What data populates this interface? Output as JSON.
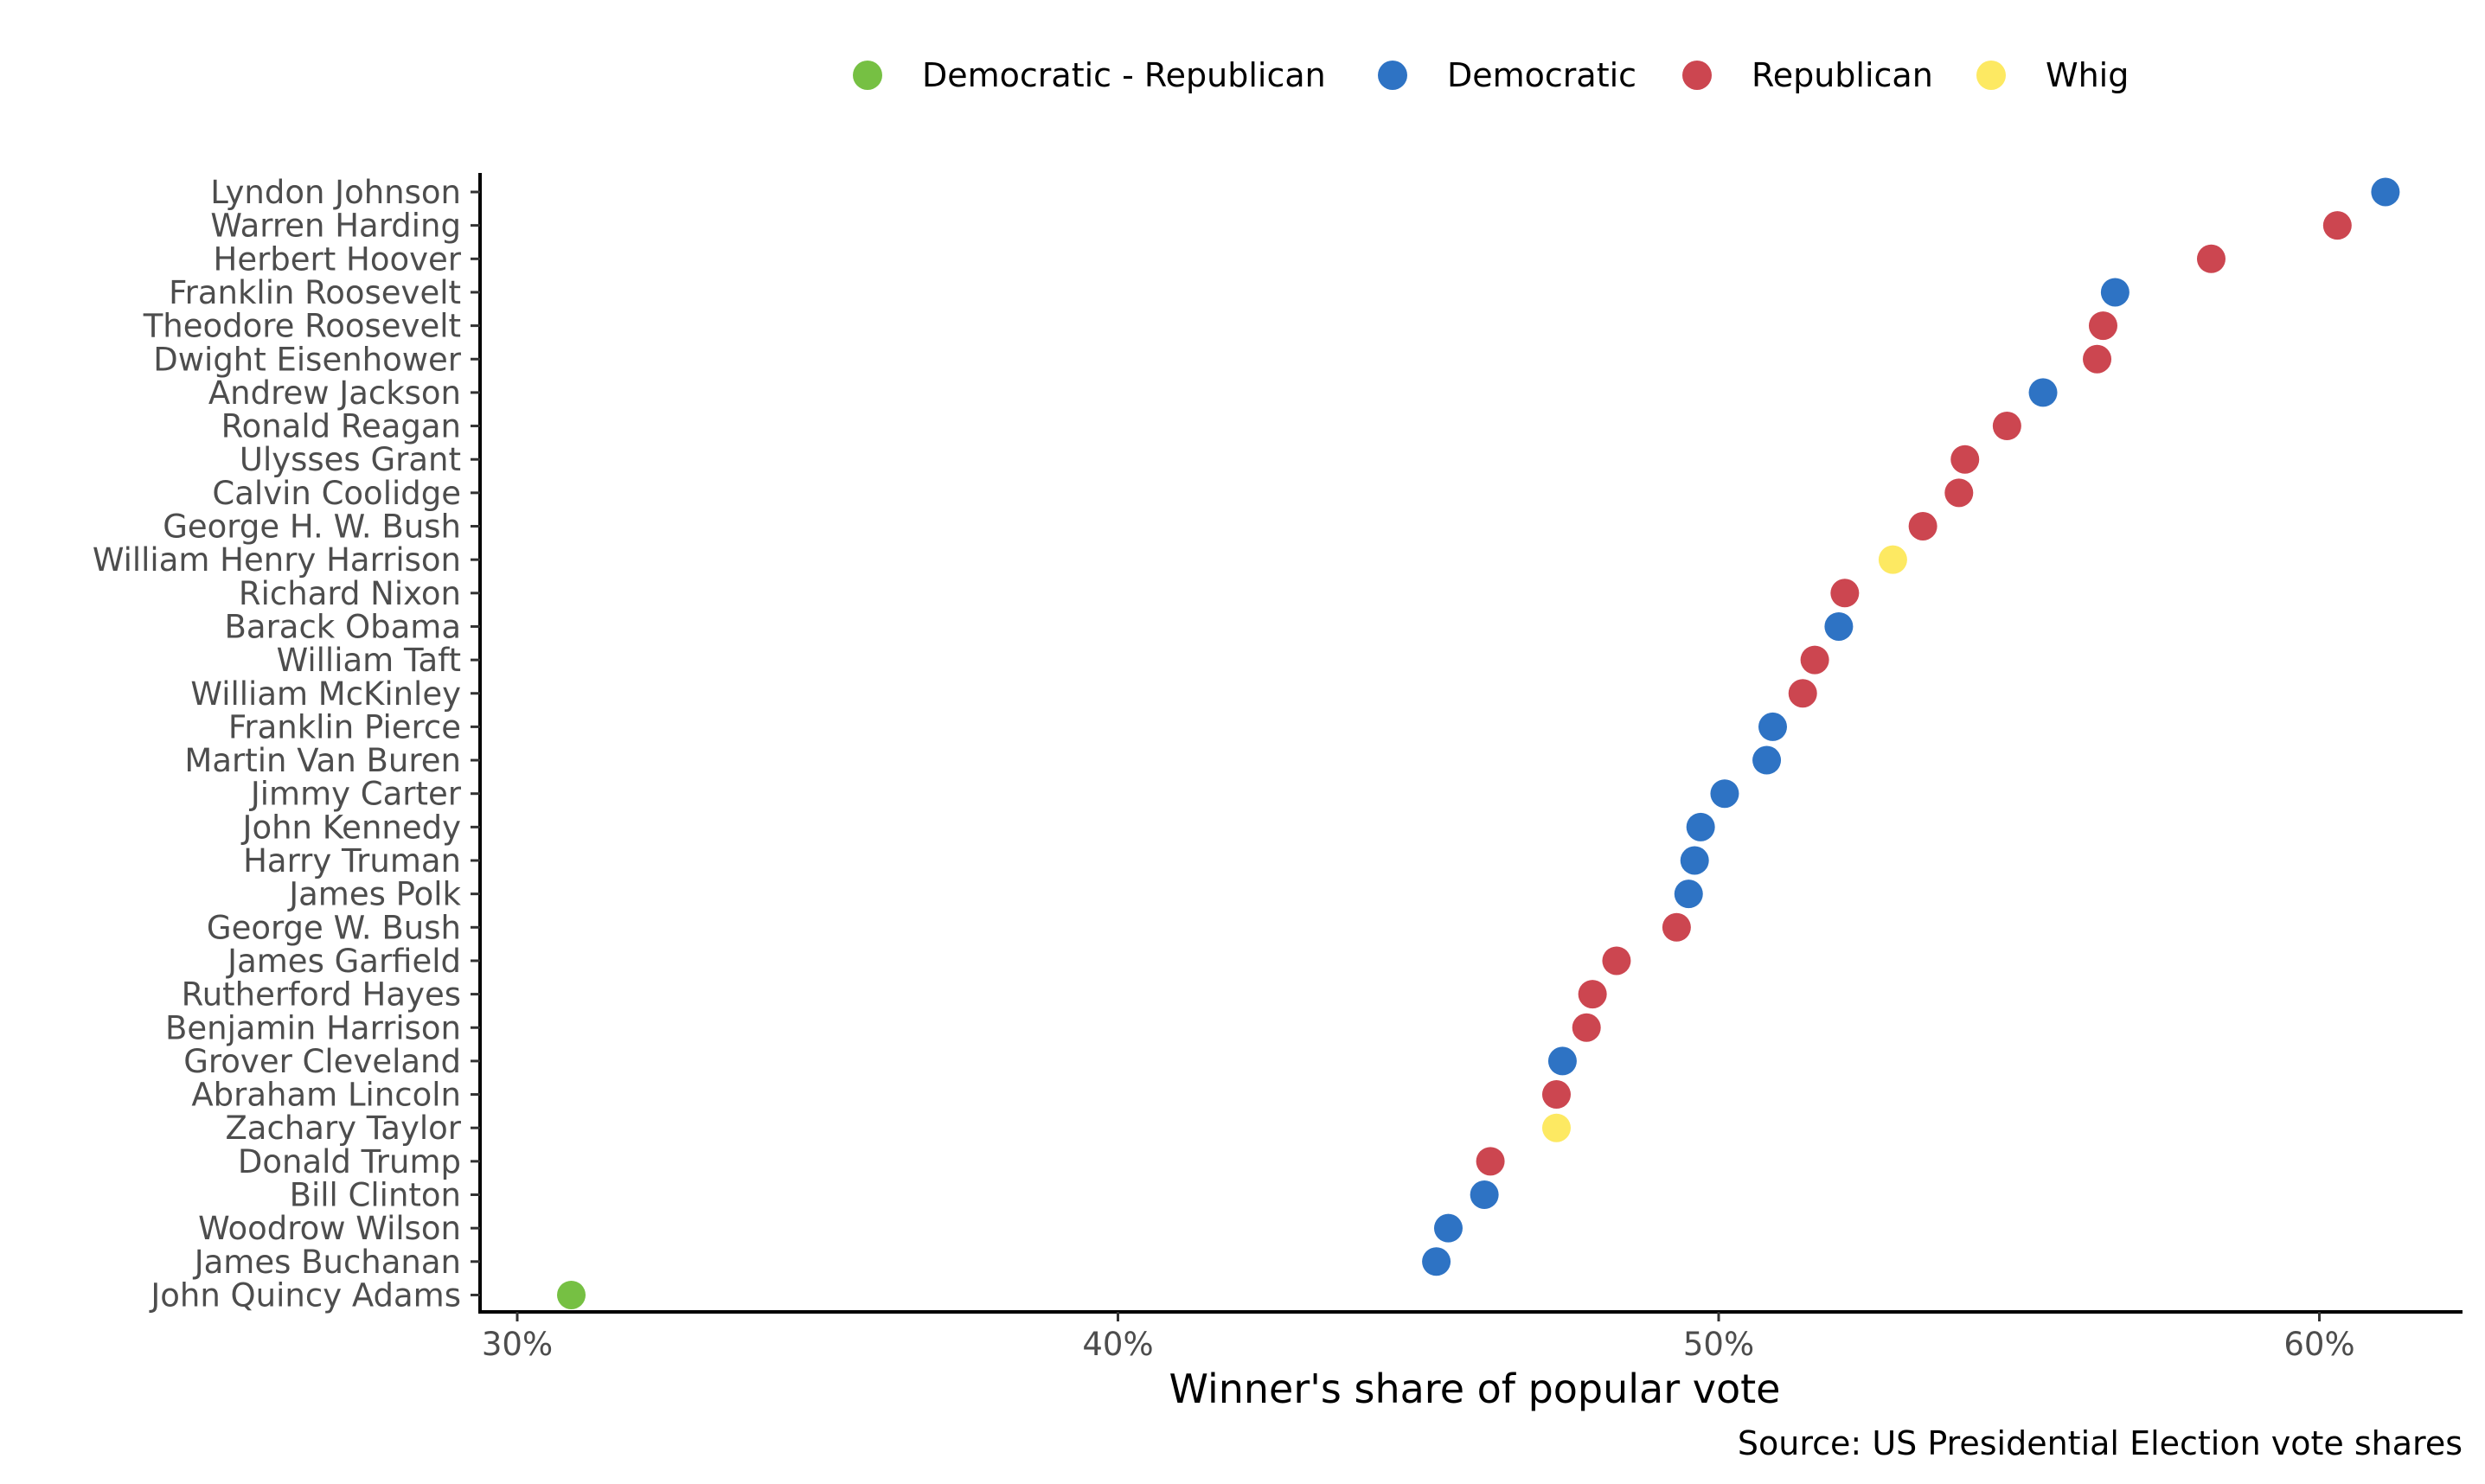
{
  "chart_data": {
    "type": "scatter",
    "xlabel": "Winner's share of popular vote",
    "caption": "Source: US Presidential Election vote shares",
    "xlim": [
      29.4,
      62.6
    ],
    "xticks": [
      30,
      40,
      50,
      60
    ],
    "xtick_labels": [
      "30%",
      "40%",
      "50%",
      "60%"
    ],
    "legend_position": "top",
    "grid": false,
    "legend": [
      {
        "name": "Democratic - Republican",
        "color": "#76c043"
      },
      {
        "name": "Democratic",
        "color": "#2e73c4"
      },
      {
        "name": "Republican",
        "color": "#cc4650"
      },
      {
        "name": "Whig",
        "color": "#fde962"
      }
    ],
    "points": [
      {
        "name": "Lyndon Johnson",
        "value": 61.1,
        "party": "Democratic"
      },
      {
        "name": "Warren Harding",
        "value": 60.3,
        "party": "Republican"
      },
      {
        "name": "Herbert Hoover",
        "value": 58.2,
        "party": "Republican"
      },
      {
        "name": "Franklin Roosevelt",
        "value": 56.6,
        "party": "Democratic"
      },
      {
        "name": "Theodore Roosevelt",
        "value": 56.4,
        "party": "Republican"
      },
      {
        "name": "Dwight Eisenhower",
        "value": 56.3,
        "party": "Republican"
      },
      {
        "name": "Andrew Jackson",
        "value": 55.4,
        "party": "Democratic"
      },
      {
        "name": "Ronald Reagan",
        "value": 54.8,
        "party": "Republican"
      },
      {
        "name": "Ulysses Grant",
        "value": 54.1,
        "party": "Republican"
      },
      {
        "name": "Calvin Coolidge",
        "value": 54.0,
        "party": "Republican"
      },
      {
        "name": "George H. W. Bush",
        "value": 53.4,
        "party": "Republican"
      },
      {
        "name": "William Henry Harrison",
        "value": 52.9,
        "party": "Whig"
      },
      {
        "name": "Richard Nixon",
        "value": 52.1,
        "party": "Republican"
      },
      {
        "name": "Barack Obama",
        "value": 52.0,
        "party": "Democratic"
      },
      {
        "name": "William Taft",
        "value": 51.6,
        "party": "Republican"
      },
      {
        "name": "William McKinley",
        "value": 51.4,
        "party": "Republican"
      },
      {
        "name": "Franklin Pierce",
        "value": 50.9,
        "party": "Democratic"
      },
      {
        "name": "Martin Van Buren",
        "value": 50.8,
        "party": "Democratic"
      },
      {
        "name": "Jimmy Carter",
        "value": 50.1,
        "party": "Democratic"
      },
      {
        "name": "John Kennedy",
        "value": 49.7,
        "party": "Democratic"
      },
      {
        "name": "Harry Truman",
        "value": 49.6,
        "party": "Democratic"
      },
      {
        "name": "James Polk",
        "value": 49.5,
        "party": "Democratic"
      },
      {
        "name": "George W. Bush",
        "value": 49.3,
        "party": "Republican"
      },
      {
        "name": "James Garfield",
        "value": 48.3,
        "party": "Republican"
      },
      {
        "name": "Rutherford Hayes",
        "value": 47.9,
        "party": "Republican"
      },
      {
        "name": "Benjamin Harrison",
        "value": 47.8,
        "party": "Republican"
      },
      {
        "name": "Grover Cleveland",
        "value": 47.4,
        "party": "Democratic"
      },
      {
        "name": "Abraham Lincoln",
        "value": 47.3,
        "party": "Republican"
      },
      {
        "name": "Zachary Taylor",
        "value": 47.3,
        "party": "Whig"
      },
      {
        "name": "Donald Trump",
        "value": 46.2,
        "party": "Republican"
      },
      {
        "name": "Bill Clinton",
        "value": 46.1,
        "party": "Democratic"
      },
      {
        "name": "Woodrow Wilson",
        "value": 45.5,
        "party": "Democratic"
      },
      {
        "name": "James Buchanan",
        "value": 45.3,
        "party": "Democratic"
      },
      {
        "name": "John Quincy Adams",
        "value": 30.9,
        "party": "Democratic - Republican"
      }
    ]
  }
}
